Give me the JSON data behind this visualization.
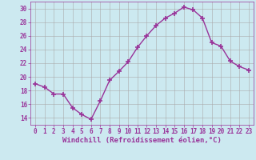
{
  "x": [
    0,
    1,
    2,
    3,
    4,
    5,
    6,
    7,
    8,
    9,
    10,
    11,
    12,
    13,
    14,
    15,
    16,
    17,
    18,
    19,
    20,
    21,
    22,
    23
  ],
  "y": [
    19.0,
    18.5,
    17.5,
    17.5,
    15.5,
    14.5,
    13.8,
    16.5,
    19.5,
    20.8,
    22.2,
    24.3,
    26.0,
    27.5,
    28.6,
    29.3,
    30.2,
    29.8,
    28.6,
    25.0,
    24.5,
    22.3,
    21.5,
    21.0
  ],
  "line_color": "#993399",
  "marker": "+",
  "markersize": 4,
  "markeredgewidth": 1.2,
  "bg_color": "#cce9f0",
  "grid_color": "#aaaaaa",
  "xlabel": "Windchill (Refroidissement éolien,°C)",
  "ylim": [
    13,
    31
  ],
  "xlim": [
    -0.5,
    23.5
  ],
  "yticks": [
    14,
    16,
    18,
    20,
    22,
    24,
    26,
    28,
    30
  ],
  "xticks": [
    0,
    1,
    2,
    3,
    4,
    5,
    6,
    7,
    8,
    9,
    10,
    11,
    12,
    13,
    14,
    15,
    16,
    17,
    18,
    19,
    20,
    21,
    22,
    23
  ],
  "tick_color": "#993399",
  "label_color": "#993399",
  "font_size": 5.5,
  "xlabel_font_size": 6.5,
  "linewidth": 1.0
}
